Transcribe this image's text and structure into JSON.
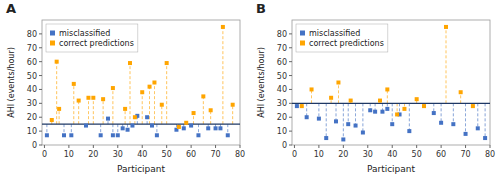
{
  "chart_data": [
    {
      "type": "scatter",
      "title": "A",
      "x_label": "Participant",
      "y_label": "AHI (events/hour)",
      "xlim": [
        -1,
        80
      ],
      "xticks": [
        0,
        10,
        20,
        30,
        40,
        50,
        60,
        70,
        80
      ],
      "ylim": [
        0,
        90
      ],
      "yticks": [
        0,
        10,
        20,
        30,
        40,
        50,
        60,
        70,
        80
      ],
      "grid": false,
      "legend": "upper left",
      "cutoff": {
        "value": 15,
        "color": "#1F3864"
      },
      "series": [
        {
          "name": "misclassified",
          "color": "#4472C4",
          "marker": "square",
          "line_style": "dashed",
          "x": [
            1,
            8,
            11,
            17,
            23,
            26,
            28,
            30,
            32,
            34,
            36,
            38,
            42,
            44,
            46,
            54,
            57,
            60,
            63,
            67,
            70,
            72,
            75
          ],
          "values": [
            7,
            7,
            7,
            14,
            7,
            19,
            7,
            7,
            12,
            11,
            14,
            21,
            20,
            14,
            7,
            11,
            12,
            14,
            7,
            12,
            12,
            12,
            7
          ]
        },
        {
          "name": "correct predictions",
          "color": "#FFA500",
          "marker": "square",
          "line_style": "dashed",
          "x": [
            3,
            5,
            6,
            12,
            14,
            18,
            20,
            24,
            28,
            33,
            35,
            37,
            40,
            43,
            45,
            48,
            50,
            55,
            58,
            61,
            65,
            68,
            73,
            77
          ],
          "values": [
            18,
            60,
            26,
            44,
            32,
            34,
            34,
            33,
            41,
            26,
            59,
            20,
            38,
            42,
            45,
            29,
            59,
            13,
            16,
            23,
            35,
            25,
            85,
            29
          ]
        }
      ]
    },
    {
      "type": "scatter",
      "title": "B",
      "x_label": "Participant",
      "y_label": "AHI (events/hour)",
      "xlim": [
        -1,
        80
      ],
      "xticks": [
        0,
        10,
        20,
        30,
        40,
        50,
        60,
        70,
        80
      ],
      "ylim": [
        0,
        90
      ],
      "yticks": [
        0,
        10,
        20,
        30,
        40,
        50,
        60,
        70,
        80
      ],
      "grid": false,
      "legend": "upper left",
      "cutoff": {
        "value": 30,
        "color": "#1F3864"
      },
      "series": [
        {
          "name": "misclassified",
          "color": "#4472C4",
          "marker": "square",
          "line_style": "dashed",
          "x": [
            1,
            5,
            10,
            13,
            17,
            20,
            22,
            25,
            28,
            31,
            33,
            36,
            38,
            40,
            43,
            47,
            57,
            60,
            65,
            70,
            75,
            78
          ],
          "values": [
            28,
            20,
            19,
            5,
            17,
            4,
            15,
            14,
            9,
            25,
            24,
            24,
            26,
            15,
            22,
            10,
            23,
            16,
            15,
            8,
            12,
            5
          ]
        },
        {
          "name": "correct predictions",
          "color": "#FFA500",
          "marker": "square",
          "line_style": "dashed",
          "x": [
            3,
            7,
            15,
            18,
            23,
            35,
            38,
            42,
            45,
            50,
            53,
            62,
            68,
            73
          ],
          "values": [
            28,
            40,
            34,
            45,
            32,
            32,
            40,
            22,
            26,
            33,
            28,
            85,
            38,
            28
          ]
        }
      ]
    }
  ]
}
